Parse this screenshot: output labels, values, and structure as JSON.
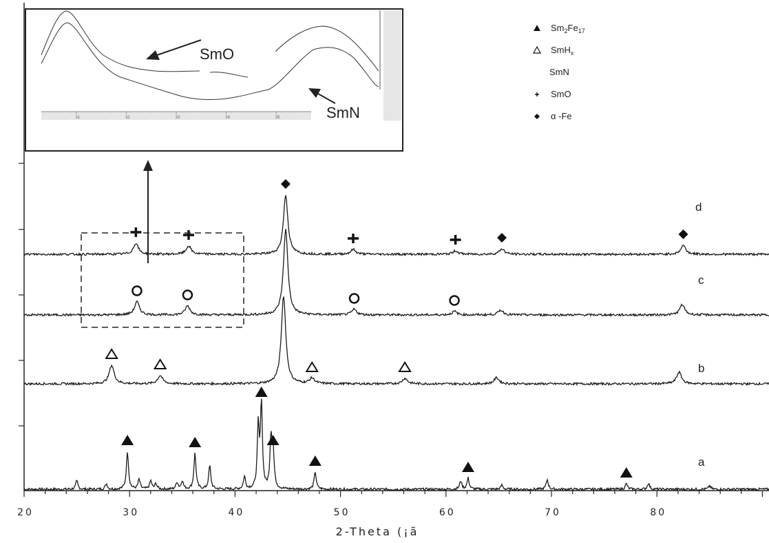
{
  "chart_data": {
    "type": "line",
    "title": "",
    "xlabel": "2-Theta (¡ã",
    "ylabel": "",
    "xlim": [
      20,
      90
    ],
    "x_ticks": [
      "20",
      "30",
      "40",
      "50",
      "60",
      "70",
      "80"
    ],
    "legend_placement": "top-right",
    "legend": [
      {
        "symbol": "filled-triangle",
        "name_main": "Sm",
        "sub1": "2",
        "name_mid": "Fe",
        "sub2": "17"
      },
      {
        "symbol": "open-triangle",
        "name_main": "SmH",
        "sub1": "x",
        "name_mid": "",
        "sub2": ""
      },
      {
        "symbol": "open-circle",
        "name_main": "SmN",
        "sub1": "",
        "name_mid": "",
        "sub2": ""
      },
      {
        "symbol": "plus",
        "name_main": "SmO",
        "sub1": "",
        "name_mid": "",
        "sub2": ""
      },
      {
        "symbol": "filled-diamond",
        "name_main": "α -Fe",
        "sub1": "",
        "name_mid": "",
        "sub2": ""
      }
    ],
    "series": [
      {
        "label": "a",
        "peaks": [
          {
            "x": 25.0,
            "h": 12
          },
          {
            "x": 27.8,
            "h": 8
          },
          {
            "x": 29.8,
            "h": 55,
            "marker": "filled-triangle"
          },
          {
            "x": 30.9,
            "h": 14
          },
          {
            "x": 32.0,
            "h": 12
          },
          {
            "x": 32.5,
            "h": 8
          },
          {
            "x": 34.5,
            "h": 10
          },
          {
            "x": 35.0,
            "h": 12
          },
          {
            "x": 36.2,
            "h": 52,
            "marker": "filled-triangle"
          },
          {
            "x": 37.6,
            "h": 34
          },
          {
            "x": 40.9,
            "h": 18
          },
          {
            "x": 42.2,
            "h": 90
          },
          {
            "x": 42.5,
            "h": 125,
            "marker": "filled-triangle"
          },
          {
            "x": 43.4,
            "h": 70
          },
          {
            "x": 43.6,
            "h": 55,
            "marker": "filled-triangle"
          },
          {
            "x": 47.6,
            "h": 25,
            "marker": "filled-triangle"
          },
          {
            "x": 61.4,
            "h": 12
          },
          {
            "x": 62.1,
            "h": 16,
            "marker": "filled-triangle"
          },
          {
            "x": 65.3,
            "h": 6
          },
          {
            "x": 69.6,
            "h": 14
          },
          {
            "x": 77.1,
            "h": 8,
            "marker": "filled-triangle"
          },
          {
            "x": 79.2,
            "h": 9
          },
          {
            "x": 85.0,
            "h": 5
          }
        ]
      },
      {
        "label": "b",
        "peaks": [
          {
            "x": 28.3,
            "h": 27,
            "marker": "open-triangle"
          },
          {
            "x": 32.9,
            "h": 12,
            "marker": "open-triangle"
          },
          {
            "x": 44.6,
            "h": 128
          },
          {
            "x": 47.3,
            "h": 8,
            "marker": "open-triangle"
          },
          {
            "x": 56.1,
            "h": 8,
            "marker": "open-triangle"
          },
          {
            "x": 64.8,
            "h": 9
          },
          {
            "x": 82.1,
            "h": 17
          }
        ]
      },
      {
        "label": "c",
        "peaks": [
          {
            "x": 30.7,
            "h": 19,
            "marker": "open-circle"
          },
          {
            "x": 35.5,
            "h": 13,
            "marker": "open-circle"
          },
          {
            "x": 44.8,
            "h": 124
          },
          {
            "x": 51.3,
            "h": 8,
            "marker": "open-circle"
          },
          {
            "x": 60.8,
            "h": 5,
            "marker": "open-circle"
          },
          {
            "x": 65.2,
            "h": 7
          },
          {
            "x": 82.4,
            "h": 15
          }
        ]
      },
      {
        "label": "d",
        "peaks": [
          {
            "x": 30.6,
            "h": 16,
            "marker": "plus"
          },
          {
            "x": 35.6,
            "h": 12,
            "marker": "plus"
          },
          {
            "x": 44.8,
            "h": 86,
            "marker": "filled-diamond"
          },
          {
            "x": 51.2,
            "h": 7,
            "marker": "plus"
          },
          {
            "x": 60.9,
            "h": 5,
            "marker": "plus"
          },
          {
            "x": 65.3,
            "h": 8,
            "marker": "filled-diamond"
          },
          {
            "x": 82.5,
            "h": 13,
            "marker": "filled-diamond"
          }
        ]
      }
    ],
    "inset": {
      "annotation_top": "SmO",
      "annotation_bottom": "SmN",
      "x_ticks": [
        "31",
        "32",
        "33",
        "34",
        "35"
      ],
      "xlim": [
        30.3,
        35.7
      ]
    }
  }
}
